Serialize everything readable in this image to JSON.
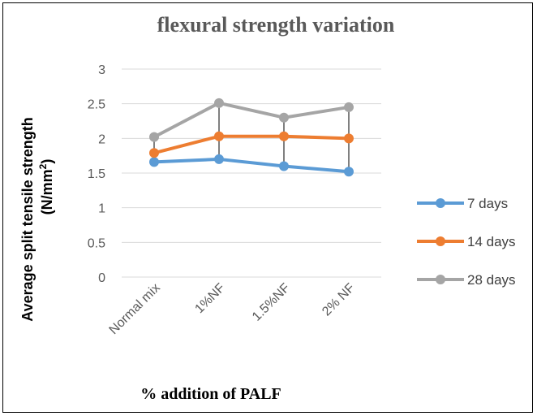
{
  "chart_data": {
    "type": "line",
    "title": "flexural  strength variation",
    "xlabel": "% addition  of PALF",
    "ylabel_line1": "Average split tensile strength",
    "ylabel_unit_prefix": "(N/mm",
    "ylabel_unit_sup": "2",
    "ylabel_unit_suffix": ")",
    "categories": [
      "Normal mix",
      "1%NF",
      "1.5%NF",
      "2%  NF"
    ],
    "ylim": [
      0,
      3
    ],
    "yticks": [
      "0",
      "0.5",
      "1",
      "1.5",
      "2",
      "2.5",
      "3"
    ],
    "grid": true,
    "legend_position": "right",
    "high_low_lines": true,
    "series": [
      {
        "name": "7 days",
        "color": "#5B9BD5",
        "values": [
          1.66,
          1.7,
          1.6,
          1.52
        ]
      },
      {
        "name": "14 days",
        "color": "#ED7D31",
        "values": [
          1.79,
          2.03,
          2.03,
          2.0
        ]
      },
      {
        "name": "28 days",
        "color": "#A5A5A5",
        "values": [
          2.02,
          2.51,
          2.3,
          2.45
        ]
      }
    ]
  }
}
